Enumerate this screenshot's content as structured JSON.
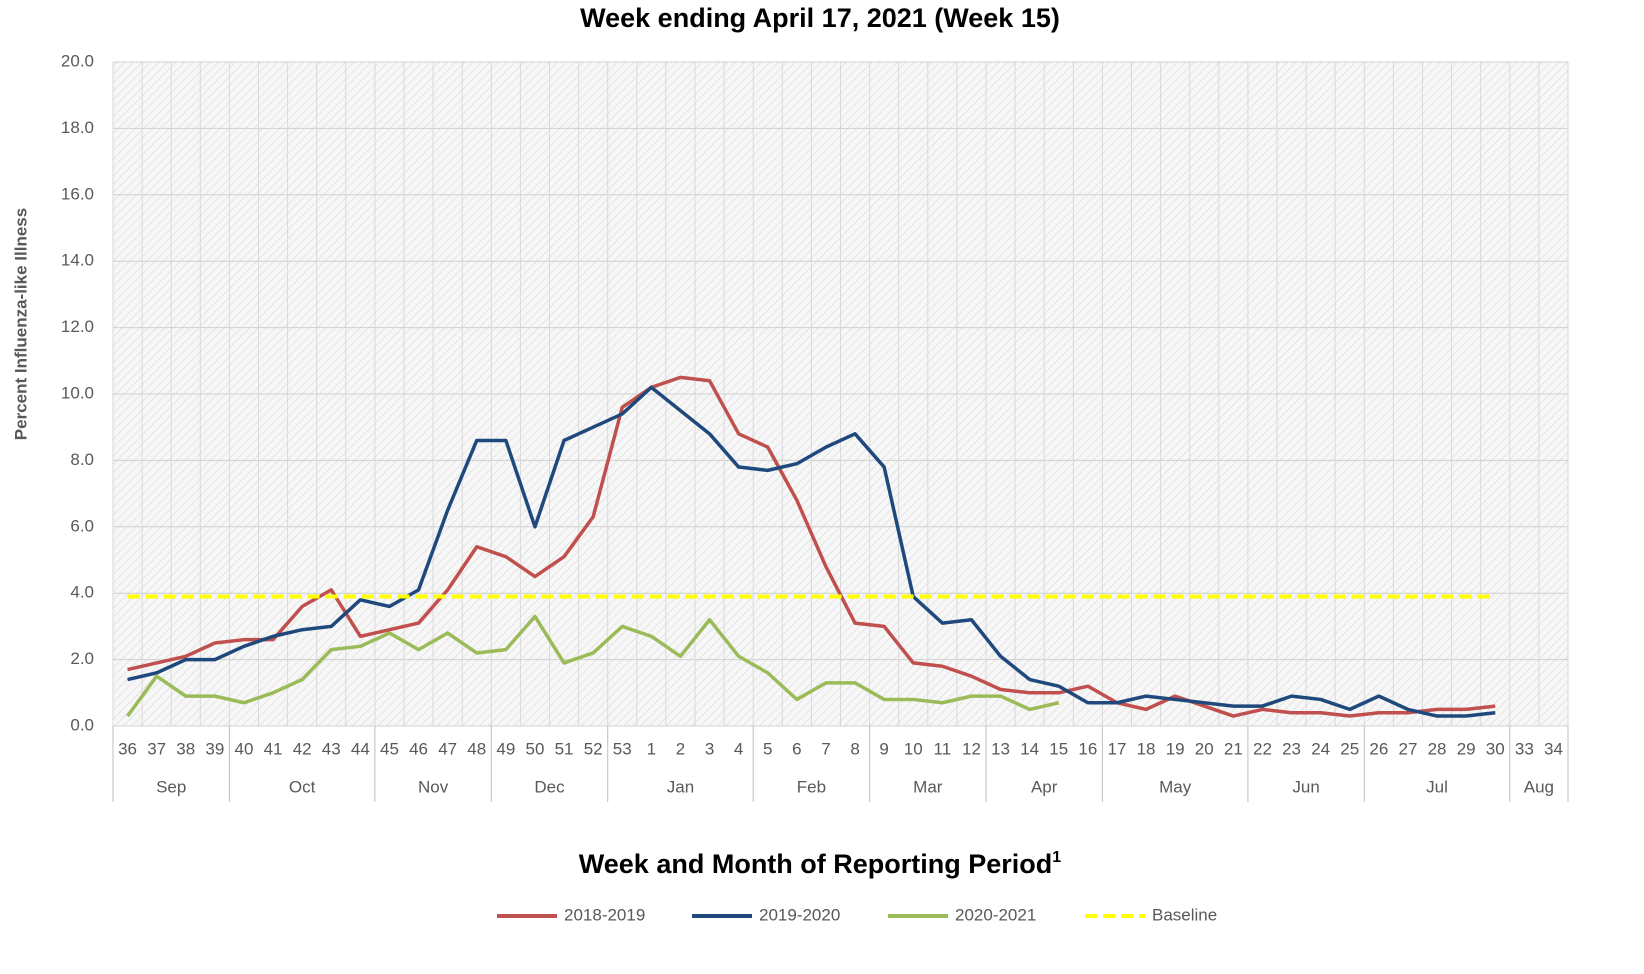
{
  "chart_data": {
    "type": "line",
    "title": "Week ending April 17, 2021 (Week 15)",
    "x_label": "Week and Month of Reporting Period",
    "x_label_note": "1",
    "y_label": "Percent Influenza-like Illness",
    "categories": [
      "36",
      "37",
      "38",
      "39",
      "40",
      "41",
      "42",
      "43",
      "44",
      "45",
      "46",
      "47",
      "48",
      "49",
      "50",
      "51",
      "52",
      "53",
      "1",
      "2",
      "3",
      "4",
      "5",
      "6",
      "7",
      "8",
      "9",
      "10",
      "11",
      "12",
      "13",
      "14",
      "15",
      "16",
      "17",
      "18",
      "19",
      "20",
      "21",
      "22",
      "23",
      "24",
      "25",
      "26",
      "27",
      "28",
      "29",
      "30",
      "33",
      "34"
    ],
    "month_of_week": [
      "Sep",
      "Sep",
      "Sep",
      "Sep",
      "Oct",
      "Oct",
      "Oct",
      "Oct",
      "Oct",
      "Nov",
      "Nov",
      "Nov",
      "Nov",
      "Dec",
      "Dec",
      "Dec",
      "Dec",
      "Jan",
      "Jan",
      "Jan",
      "Jan",
      "Jan",
      "Feb",
      "Feb",
      "Feb",
      "Feb",
      "Mar",
      "Mar",
      "Mar",
      "Mar",
      "Apr",
      "Apr",
      "Apr",
      "Apr",
      "May",
      "May",
      "May",
      "May",
      "May",
      "Jun",
      "Jun",
      "Jun",
      "Jun",
      "Jul",
      "Jul",
      "Jul",
      "Jul",
      "Jul",
      "Aug",
      "Aug"
    ],
    "ylim": [
      0,
      20
    ],
    "yticks": [
      {
        "value": 0,
        "label": "0.0"
      },
      {
        "value": 2,
        "label": "2.0"
      },
      {
        "value": 4,
        "label": "4.0"
      },
      {
        "value": 6,
        "label": "6.0"
      },
      {
        "value": 8,
        "label": "8.0"
      },
      {
        "value": 10,
        "label": "10.0"
      },
      {
        "value": 12,
        "label": "12.0"
      },
      {
        "value": 14,
        "label": "14.0"
      },
      {
        "value": 16,
        "label": "16.0"
      },
      {
        "value": 18,
        "label": "18.0"
      },
      {
        "value": 20,
        "label": "20.0"
      }
    ],
    "grid": true,
    "legend": "bottom",
    "series": [
      {
        "name": "2018-2019",
        "color": "#c0504d",
        "values": [
          1.7,
          1.9,
          2.1,
          2.5,
          2.6,
          2.6,
          3.6,
          4.1,
          2.7,
          2.9,
          3.1,
          4.1,
          5.4,
          5.1,
          4.5,
          5.1,
          6.3,
          9.6,
          10.2,
          10.5,
          10.4,
          8.8,
          8.4,
          6.8,
          4.8,
          3.1,
          3.0,
          1.9,
          1.8,
          1.5,
          1.1,
          1.0,
          1.0,
          1.2,
          0.7,
          0.5,
          0.9,
          0.6,
          0.3,
          0.5,
          0.4,
          0.4,
          0.3,
          0.4,
          0.4,
          0.5,
          0.5,
          0.6,
          null,
          null
        ]
      },
      {
        "name": "2019-2020",
        "color": "#1f497d",
        "values": [
          1.4,
          1.6,
          2.0,
          2.0,
          2.4,
          2.7,
          2.9,
          3.0,
          3.8,
          3.6,
          4.1,
          6.5,
          8.6,
          8.6,
          6.0,
          8.6,
          9.0,
          9.4,
          10.2,
          9.5,
          8.8,
          7.8,
          7.7,
          7.9,
          8.4,
          8.8,
          7.8,
          3.9,
          3.1,
          3.2,
          2.1,
          1.4,
          1.2,
          0.7,
          0.7,
          0.9,
          0.8,
          0.7,
          0.6,
          0.6,
          0.9,
          0.8,
          0.5,
          0.9,
          0.5,
          0.3,
          0.3,
          0.4,
          null,
          null
        ]
      },
      {
        "name": "2020-2021",
        "color": "#9bbb59",
        "values": [
          0.3,
          1.5,
          0.9,
          0.9,
          0.7,
          1.0,
          1.4,
          2.3,
          2.4,
          2.8,
          2.3,
          2.8,
          2.2,
          2.3,
          3.3,
          1.9,
          2.2,
          3.0,
          2.7,
          2.1,
          3.2,
          2.1,
          1.6,
          0.8,
          1.3,
          1.3,
          0.8,
          0.8,
          0.7,
          0.9,
          0.9,
          0.5,
          0.7,
          null,
          null,
          null,
          null,
          null,
          null,
          null,
          null,
          null,
          null,
          null,
          null,
          null,
          null,
          null,
          null,
          null
        ]
      },
      {
        "name": "Baseline",
        "color": "#ffff00",
        "dashed": true,
        "values": [
          3.9,
          3.9,
          3.9,
          3.9,
          3.9,
          3.9,
          3.9,
          3.9,
          3.9,
          3.9,
          3.9,
          3.9,
          3.9,
          3.9,
          3.9,
          3.9,
          3.9,
          3.9,
          3.9,
          3.9,
          3.9,
          3.9,
          3.9,
          3.9,
          3.9,
          3.9,
          3.9,
          3.9,
          3.9,
          3.9,
          3.9,
          3.9,
          3.9,
          3.9,
          3.9,
          3.9,
          3.9,
          3.9,
          3.9,
          3.9,
          3.9,
          3.9,
          3.9,
          3.9,
          3.9,
          3.9,
          3.9,
          3.9,
          null,
          null
        ]
      }
    ]
  }
}
